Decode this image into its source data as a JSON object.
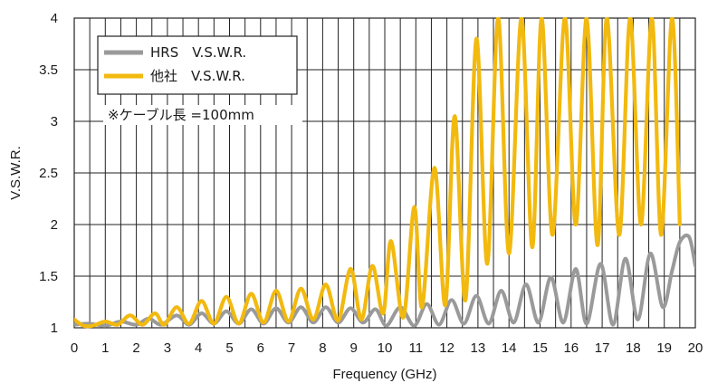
{
  "chart_data": {
    "type": "line",
    "xlabel": "Frequency (GHz)",
    "ylabel": "V.S.W.R.",
    "xlim": [
      0,
      20
    ],
    "ylim": [
      1,
      4
    ],
    "x_ticks": [
      "0",
      "1",
      "2",
      "3",
      "4",
      "5",
      "6",
      "7",
      "8",
      "9",
      "10",
      "11",
      "12",
      "13",
      "14",
      "15",
      "16",
      "17",
      "18",
      "19",
      "20"
    ],
    "y_ticks": [
      "1",
      "1.5",
      "2",
      "2.5",
      "3",
      "3.5",
      "4"
    ],
    "grid": true,
    "legend_placement": "top-left",
    "note": "※ケーブル長 =100mm",
    "series": [
      {
        "name": "HRS　V.S.W.R.",
        "color": "#9a9a9a",
        "x": [
          0,
          0.5,
          1,
          1.5,
          2,
          2.4,
          2.8,
          3.3,
          3.7,
          4.1,
          4.5,
          4.9,
          5.3,
          5.7,
          6.1,
          6.5,
          6.9,
          7.3,
          7.7,
          8.1,
          8.5,
          8.9,
          9.3,
          9.7,
          10.05,
          10.5,
          10.95,
          11.35,
          11.75,
          12.15,
          12.55,
          12.95,
          13.35,
          13.75,
          14.15,
          14.55,
          14.95,
          15.35,
          15.75,
          16.15,
          16.5,
          16.95,
          17.35,
          17.75,
          18.15,
          18.55,
          18.95,
          19.25,
          19.5,
          19.8,
          20
        ],
        "values": [
          1.03,
          1.04,
          1.02,
          1.06,
          1.03,
          1.09,
          1.03,
          1.12,
          1.03,
          1.14,
          1.04,
          1.16,
          1.04,
          1.18,
          1.04,
          1.19,
          1.05,
          1.2,
          1.05,
          1.2,
          1.05,
          1.19,
          1.05,
          1.18,
          1.02,
          1.2,
          1.02,
          1.23,
          1.03,
          1.27,
          1.04,
          1.31,
          1.04,
          1.36,
          1.05,
          1.42,
          1.05,
          1.49,
          1.05,
          1.57,
          1.04,
          1.62,
          1.03,
          1.67,
          1.08,
          1.72,
          1.2,
          1.55,
          1.83,
          1.88,
          1.6
        ]
      },
      {
        "name": "他社　V.S.W.R.",
        "color": "#f2b90f",
        "x": [
          0,
          0.3,
          0.6,
          1,
          1.4,
          1.8,
          2.2,
          2.6,
          2.9,
          3.3,
          3.7,
          4.1,
          4.5,
          4.9,
          5.3,
          5.7,
          6.1,
          6.5,
          6.9,
          7.3,
          7.7,
          8.1,
          8.5,
          8.9,
          9.25,
          9.6,
          9.95,
          10.2,
          10.6,
          10.95,
          11.2,
          11.6,
          11.95,
          12.25,
          12.6,
          12.95,
          13.3,
          13.65,
          14,
          14.4,
          14.75,
          15.05,
          15.4,
          15.8,
          16.15,
          16.5,
          16.85,
          17.15,
          17.55,
          17.9,
          18.25,
          18.6,
          18.9,
          19.25,
          19.5
        ],
        "values": [
          1.08,
          1.02,
          1.02,
          1.06,
          1.03,
          1.12,
          1.03,
          1.14,
          1.03,
          1.2,
          1.04,
          1.26,
          1.04,
          1.3,
          1.04,
          1.33,
          1.05,
          1.36,
          1.06,
          1.38,
          1.08,
          1.42,
          1.07,
          1.57,
          1.08,
          1.6,
          1.14,
          1.84,
          1.1,
          2.17,
          1.2,
          2.55,
          1.22,
          3.05,
          1.27,
          3.8,
          1.62,
          4.0,
          1.72,
          4.0,
          1.78,
          4.0,
          1.9,
          4.0,
          2.0,
          4.0,
          1.8,
          4.0,
          1.9,
          4.0,
          2.0,
          4.0,
          1.9,
          4.0,
          2.0
        ]
      }
    ]
  }
}
